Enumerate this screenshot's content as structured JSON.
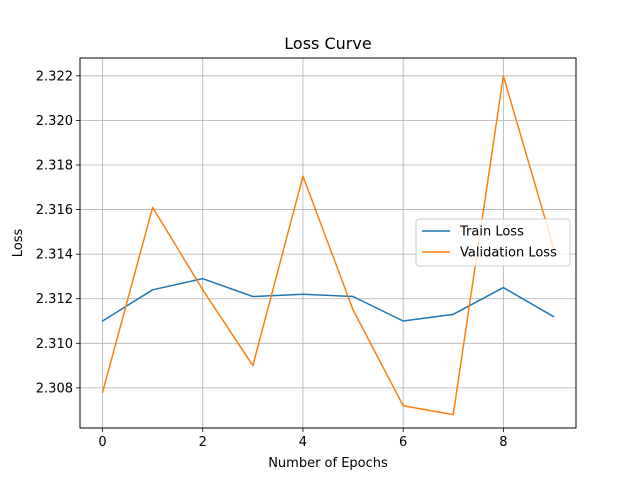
{
  "chart_data": {
    "type": "line",
    "title": "Loss Curve",
    "xlabel": "Number of Epochs",
    "ylabel": "Loss",
    "x": [
      0,
      1,
      2,
      3,
      4,
      5,
      6,
      7,
      8,
      9
    ],
    "xlim": [
      -0.45,
      9.45
    ],
    "ylim": [
      2.3062,
      2.3228
    ],
    "xticks": [
      0,
      2,
      4,
      6,
      8
    ],
    "xtick_labels": [
      "0",
      "2",
      "4",
      "6",
      "8"
    ],
    "yticks": [
      2.308,
      2.31,
      2.312,
      2.314,
      2.316,
      2.318,
      2.32,
      2.322
    ],
    "ytick_labels": [
      "2.308",
      "2.310",
      "2.312",
      "2.314",
      "2.316",
      "2.318",
      "2.320",
      "2.322"
    ],
    "grid": true,
    "legend_position": "center-right",
    "series": [
      {
        "name": "Train Loss",
        "color": "#1f77b4",
        "values": [
          2.311,
          2.3124,
          2.3129,
          2.3121,
          2.3122,
          2.3121,
          2.311,
          2.3113,
          2.3125,
          2.3112
        ]
      },
      {
        "name": "Validation Loss",
        "color": "#ff7f0e",
        "values": [
          2.3078,
          2.3161,
          2.3124,
          2.309,
          2.3175,
          2.3115,
          2.3072,
          2.3068,
          2.322,
          2.3143
        ]
      }
    ]
  }
}
